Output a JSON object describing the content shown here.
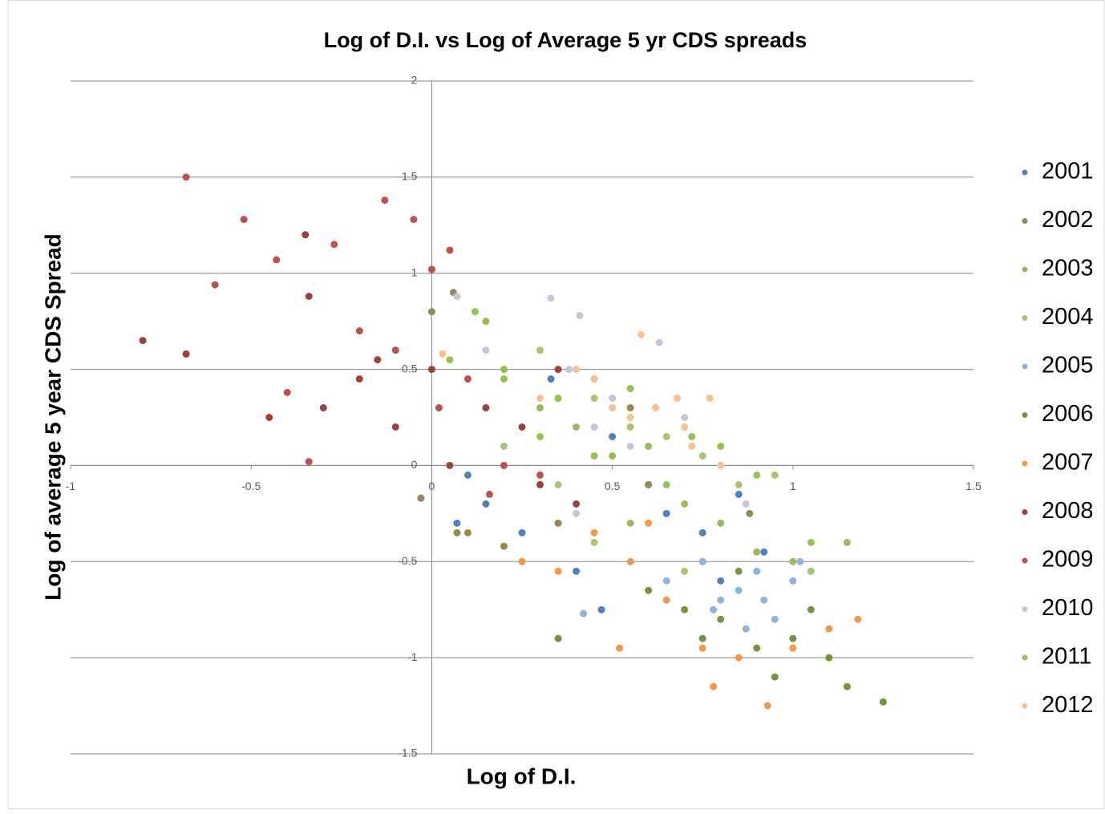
{
  "chart_data": {
    "type": "scatter",
    "title": "Log of D.I. vs Log of Average 5 yr CDS spreads",
    "x_label": "Log of D.I.",
    "y_label": "Log of average 5 year CDS Spread",
    "xlim": [
      -1,
      1.5
    ],
    "xticks": [
      -1,
      -0.5,
      0,
      0.5,
      1,
      1.5
    ],
    "ylim": [
      -1.5,
      2
    ],
    "yticks": [
      -1.5,
      -1,
      -0.5,
      0,
      0.5,
      1,
      1.5,
      2
    ],
    "grid": true,
    "legend": "right",
    "series": [
      {
        "name": "2001",
        "color": "#4f81bd",
        "x": [
          0.1,
          0.15,
          0.25,
          0.33,
          0.4,
          0.5,
          0.6,
          0.75,
          0.85,
          0.92,
          0.07,
          0.47,
          0.65,
          0.8
        ],
        "values": [
          -0.05,
          -0.2,
          -0.35,
          0.45,
          -0.55,
          0.15,
          -0.1,
          -0.35,
          -0.15,
          -0.45,
          -0.3,
          -0.75,
          -0.25,
          -0.6
        ]
      },
      {
        "name": "2002",
        "color": "#948a54",
        "x": [
          0.0,
          -0.03,
          0.07,
          0.1,
          0.2,
          0.35,
          0.45,
          0.55,
          0.6,
          0.75,
          0.88,
          0.06
        ],
        "values": [
          0.8,
          -0.17,
          -0.35,
          -0.35,
          -0.42,
          -0.3,
          0.45,
          0.3,
          -0.1,
          -0.5,
          -0.25,
          0.9
        ]
      },
      {
        "name": "2003",
        "color": "#9bbb59",
        "x": [
          0.15,
          0.2,
          0.3,
          0.4,
          0.5,
          0.6,
          0.7,
          0.8,
          0.9,
          1.0,
          1.15,
          0.55
        ],
        "values": [
          0.75,
          0.5,
          0.3,
          0.2,
          0.05,
          0.1,
          -0.2,
          -0.3,
          -0.45,
          -0.5,
          -0.4,
          -0.3
        ]
      },
      {
        "name": "2004",
        "color": "#a9c46c",
        "x": [
          0.2,
          0.3,
          0.45,
          0.55,
          0.65,
          0.75,
          0.85,
          0.95,
          0.35,
          0.45,
          1.05,
          0.7
        ],
        "values": [
          0.1,
          0.6,
          0.35,
          0.2,
          0.15,
          0.05,
          -0.1,
          -0.05,
          -0.1,
          -0.4,
          -0.55,
          -0.55
        ]
      },
      {
        "name": "2005",
        "color": "#8db3e2",
        "x": [
          0.65,
          0.75,
          0.8,
          0.85,
          0.9,
          0.95,
          1.0,
          1.02,
          0.87,
          0.78,
          0.42,
          0.92
        ],
        "values": [
          -0.6,
          -0.5,
          -0.7,
          -0.65,
          -0.55,
          -0.8,
          -0.6,
          -0.5,
          -0.85,
          -0.75,
          -0.77,
          -0.7
        ]
      },
      {
        "name": "2006",
        "color": "#77933c",
        "x": [
          0.35,
          0.6,
          0.7,
          0.8,
          0.9,
          1.0,
          1.1,
          1.25,
          1.15,
          0.95,
          0.75,
          0.85,
          1.05
        ],
        "values": [
          -0.9,
          -0.65,
          -0.75,
          -0.8,
          -0.95,
          -0.9,
          -1.0,
          -1.23,
          -1.15,
          -1.1,
          -0.9,
          -0.55,
          -0.75
        ]
      },
      {
        "name": "2007",
        "color": "#f79646",
        "x": [
          0.25,
          0.35,
          0.45,
          0.55,
          0.65,
          0.75,
          0.85,
          0.93,
          1.0,
          1.1,
          1.18,
          0.78,
          0.6,
          0.52
        ],
        "values": [
          -0.5,
          -0.55,
          -0.35,
          -0.5,
          -0.7,
          -0.95,
          -1.0,
          -1.25,
          -0.95,
          -0.85,
          -0.8,
          -1.15,
          -0.3,
          -0.95
        ]
      },
      {
        "name": "2008",
        "color": "#a0403d",
        "x": [
          -0.8,
          -0.68,
          -0.45,
          -0.35,
          -0.3,
          -0.2,
          -0.1,
          0.0,
          0.05,
          0.15,
          0.25,
          0.35,
          0.4,
          0.3,
          -0.34,
          -0.15
        ],
        "values": [
          0.65,
          0.58,
          0.25,
          1.2,
          0.3,
          0.45,
          0.2,
          0.5,
          0.0,
          0.3,
          0.2,
          0.5,
          -0.2,
          -0.1,
          0.88,
          0.55
        ]
      },
      {
        "name": "2009",
        "color": "#c0504d",
        "x": [
          -0.68,
          -0.52,
          -0.6,
          -0.43,
          -0.27,
          -0.13,
          -0.05,
          0.0,
          0.05,
          -0.4,
          -0.34,
          -0.2,
          -0.1,
          0.1,
          0.02,
          0.2,
          0.3,
          0.16
        ],
        "values": [
          1.5,
          1.28,
          0.94,
          1.07,
          1.15,
          1.38,
          1.28,
          1.02,
          1.12,
          0.38,
          0.02,
          0.7,
          0.6,
          0.45,
          0.3,
          0.0,
          -0.05,
          -0.15
        ]
      },
      {
        "name": "2010",
        "color": "#ccc1da",
        "x": [
          0.07,
          0.15,
          0.33,
          0.41,
          0.38,
          0.45,
          0.5,
          0.63,
          0.55,
          0.7,
          0.87,
          0.4
        ],
        "values": [
          0.88,
          0.6,
          0.87,
          0.78,
          0.5,
          0.2,
          0.35,
          0.64,
          0.1,
          0.25,
          -0.2,
          -0.25
        ]
      },
      {
        "name": "2011",
        "color": "#92c353",
        "x": [
          0.12,
          0.2,
          0.3,
          0.45,
          0.55,
          0.62,
          0.72,
          0.8,
          0.9,
          0.35,
          0.65,
          1.05,
          0.05
        ],
        "values": [
          0.8,
          0.45,
          0.15,
          0.05,
          0.4,
          0.3,
          0.15,
          0.1,
          -0.05,
          0.35,
          -0.1,
          -0.4,
          0.55
        ]
      },
      {
        "name": "2012",
        "color": "#fac090",
        "x": [
          0.3,
          0.4,
          0.45,
          0.5,
          0.55,
          0.58,
          0.62,
          0.68,
          0.72,
          0.77,
          0.8,
          0.7,
          0.03
        ],
        "values": [
          0.35,
          0.5,
          0.45,
          0.3,
          0.25,
          0.68,
          0.3,
          0.35,
          0.1,
          0.35,
          0.0,
          0.2,
          0.58
        ]
      }
    ]
  }
}
